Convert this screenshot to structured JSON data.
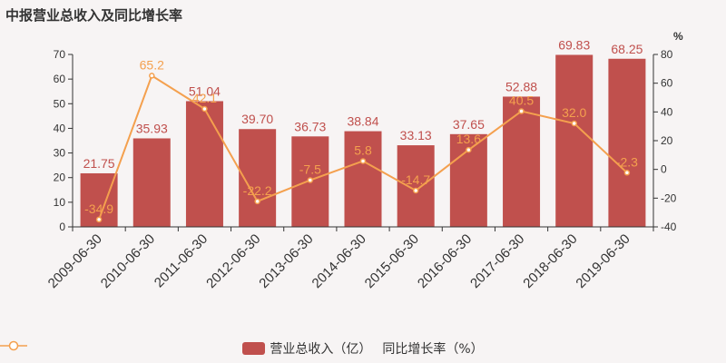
{
  "title": "中报营业总收入及同比增长率",
  "legend": {
    "bar_label": "营业总收入（亿）",
    "line_label": "同比增长率（%）"
  },
  "colors": {
    "bar": "#c0504d",
    "line": "#f4a04e",
    "axis": "#333333",
    "bar_label": "#c0504d",
    "line_label": "#f4a04e",
    "background": "#f7f4f4"
  },
  "chart_data": {
    "type": "bar",
    "categories": [
      "2009-06-30",
      "2010-06-30",
      "2011-06-30",
      "2012-06-30",
      "2013-06-30",
      "2014-06-30",
      "2015-06-30",
      "2016-06-30",
      "2017-06-30",
      "2018-06-30",
      "2019-06-30"
    ],
    "series": [
      {
        "name": "营业总收入（亿）",
        "type": "bar",
        "axis": "left",
        "values": [
          21.75,
          35.93,
          51.04,
          39.7,
          36.73,
          38.84,
          33.13,
          37.65,
          52.88,
          69.83,
          68.25
        ],
        "labels": [
          "21.75",
          "35.93",
          "51.04",
          "39.70",
          "36.73",
          "38.84",
          "33.13",
          "37.65",
          "52.88",
          "69.83",
          "68.25"
        ]
      },
      {
        "name": "同比增长率（%）",
        "type": "line",
        "axis": "right",
        "values": [
          -34.9,
          65.2,
          42.1,
          -22.2,
          -7.5,
          5.8,
          -14.7,
          13.6,
          40.5,
          32.0,
          -2.3
        ],
        "labels": [
          "-34.9",
          "65.2",
          "42.1",
          "-22.2",
          "-7.5",
          "5.8",
          "-14.7",
          "13.6",
          "40.5",
          "32.0",
          "-2.3"
        ]
      }
    ],
    "y_left": {
      "min": 0,
      "max": 70,
      "ticks": [
        "0",
        "10",
        "20",
        "30",
        "40",
        "50",
        "60",
        "70"
      ]
    },
    "y_right": {
      "min": -40,
      "max": 80,
      "unit": "%",
      "ticks": [
        "-40",
        "-20",
        "0",
        "20",
        "40",
        "60",
        "80"
      ]
    },
    "grid": false,
    "legend_position": "bottom"
  }
}
